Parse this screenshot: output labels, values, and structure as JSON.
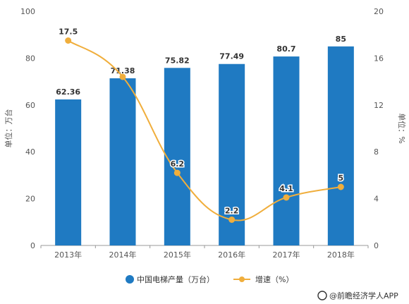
{
  "chart_data": {
    "type": "bar",
    "categories": [
      "2013年",
      "2014年",
      "2015年",
      "2016年",
      "2017年",
      "2018年"
    ],
    "series": [
      {
        "name": "中国电梯产量（万台）",
        "type": "bar",
        "axis": "left",
        "color": "#1f7ac2",
        "values": [
          62.36,
          71.38,
          75.82,
          77.49,
          80.7,
          85
        ],
        "labels": [
          "62.36",
          "71.38",
          "75.82",
          "77.49",
          "80.7",
          "85"
        ]
      },
      {
        "name": "增速（%）",
        "type": "line",
        "axis": "right",
        "color": "#f0ae3c",
        "values": [
          17.5,
          14.4,
          6.2,
          2.2,
          4.1,
          5
        ],
        "labels": [
          "17.5",
          "",
          "6.2",
          "2.2",
          "4.1",
          "5"
        ]
      }
    ],
    "ylabel_left": "单位：万台",
    "ylabel_right": "单位：%",
    "ylim_left": [
      0,
      100
    ],
    "ylim_right": [
      0,
      20
    ],
    "yticks_left": [
      "0",
      "20",
      "40",
      "60",
      "80",
      "100"
    ],
    "yticks_right": [
      "0",
      "4",
      "8",
      "12",
      "16",
      "20"
    ],
    "grid": false,
    "legend_position": "bottom",
    "source": "@前瞻经济学人APP"
  }
}
